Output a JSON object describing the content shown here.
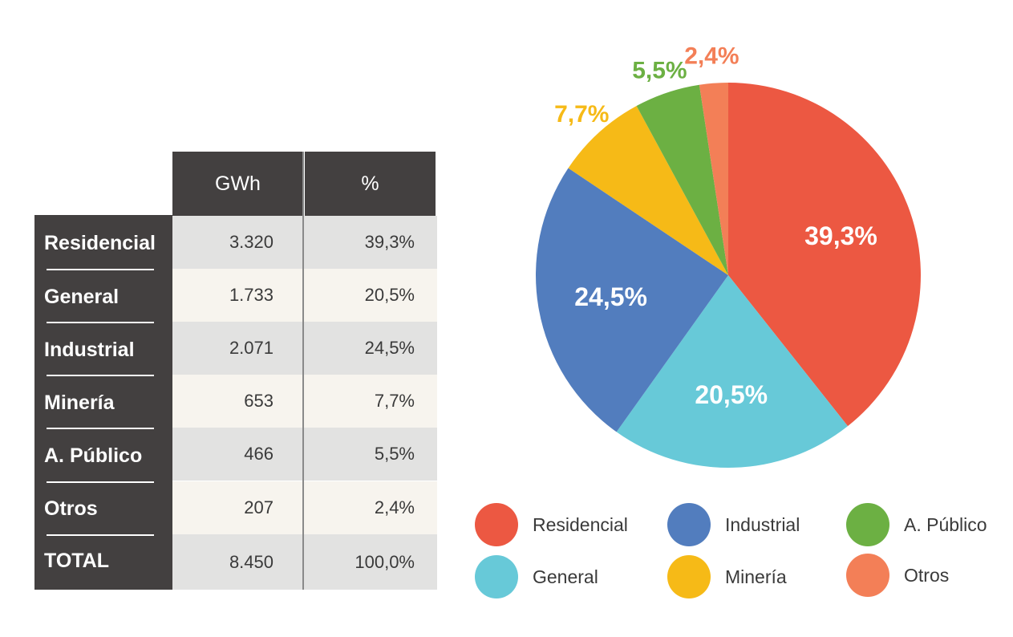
{
  "table": {
    "headers": {
      "gwh": "GWh",
      "pct": "%"
    },
    "rows": [
      {
        "label": "Residencial",
        "gwh": "3.320",
        "pct": "39,3%"
      },
      {
        "label": "General",
        "gwh": "1.733",
        "pct": "20,5%"
      },
      {
        "label": "Industrial",
        "gwh": "2.071",
        "pct": "24,5%"
      },
      {
        "label": "Minería",
        "gwh": "653",
        "pct": "7,7%"
      },
      {
        "label": "A. Público",
        "gwh": "466",
        "pct": "5,5%"
      },
      {
        "label": "Otros",
        "gwh": "207",
        "pct": "2,4%"
      },
      {
        "label": "TOTAL",
        "gwh": "8.450",
        "pct": "100,0%"
      }
    ]
  },
  "chart_data": {
    "type": "pie",
    "categories": [
      "Residencial",
      "General",
      "Industrial",
      "Minería",
      "A. Público",
      "Otros"
    ],
    "values": [
      39.3,
      20.5,
      24.5,
      7.7,
      5.5,
      2.4
    ],
    "labels": [
      "39,3%",
      "20,5%",
      "24,5%",
      "7,7%",
      "5,5%",
      "2,4%"
    ],
    "colors": [
      "#ec5842",
      "#67c9d8",
      "#527dbe",
      "#f6ba17",
      "#6cb043",
      "#f37f57"
    ],
    "label_colors": [
      "#ffffff",
      "#ffffff",
      "#ffffff",
      "#f6ba17",
      "#6cb043",
      "#f37f57"
    ],
    "start_angle_deg": 0,
    "direction": "clockwise",
    "legend_position": "bottom"
  },
  "legend": {
    "items": [
      {
        "label": "Residencial",
        "color": "#ec5842"
      },
      {
        "label": "General",
        "color": "#67c9d8"
      },
      {
        "label": "Industrial",
        "color": "#527dbe"
      },
      {
        "label": "Minería",
        "color": "#f6ba17"
      },
      {
        "label": "A. Público",
        "color": "#6cb043"
      },
      {
        "label": "Otros",
        "color": "#f37f57"
      }
    ]
  }
}
